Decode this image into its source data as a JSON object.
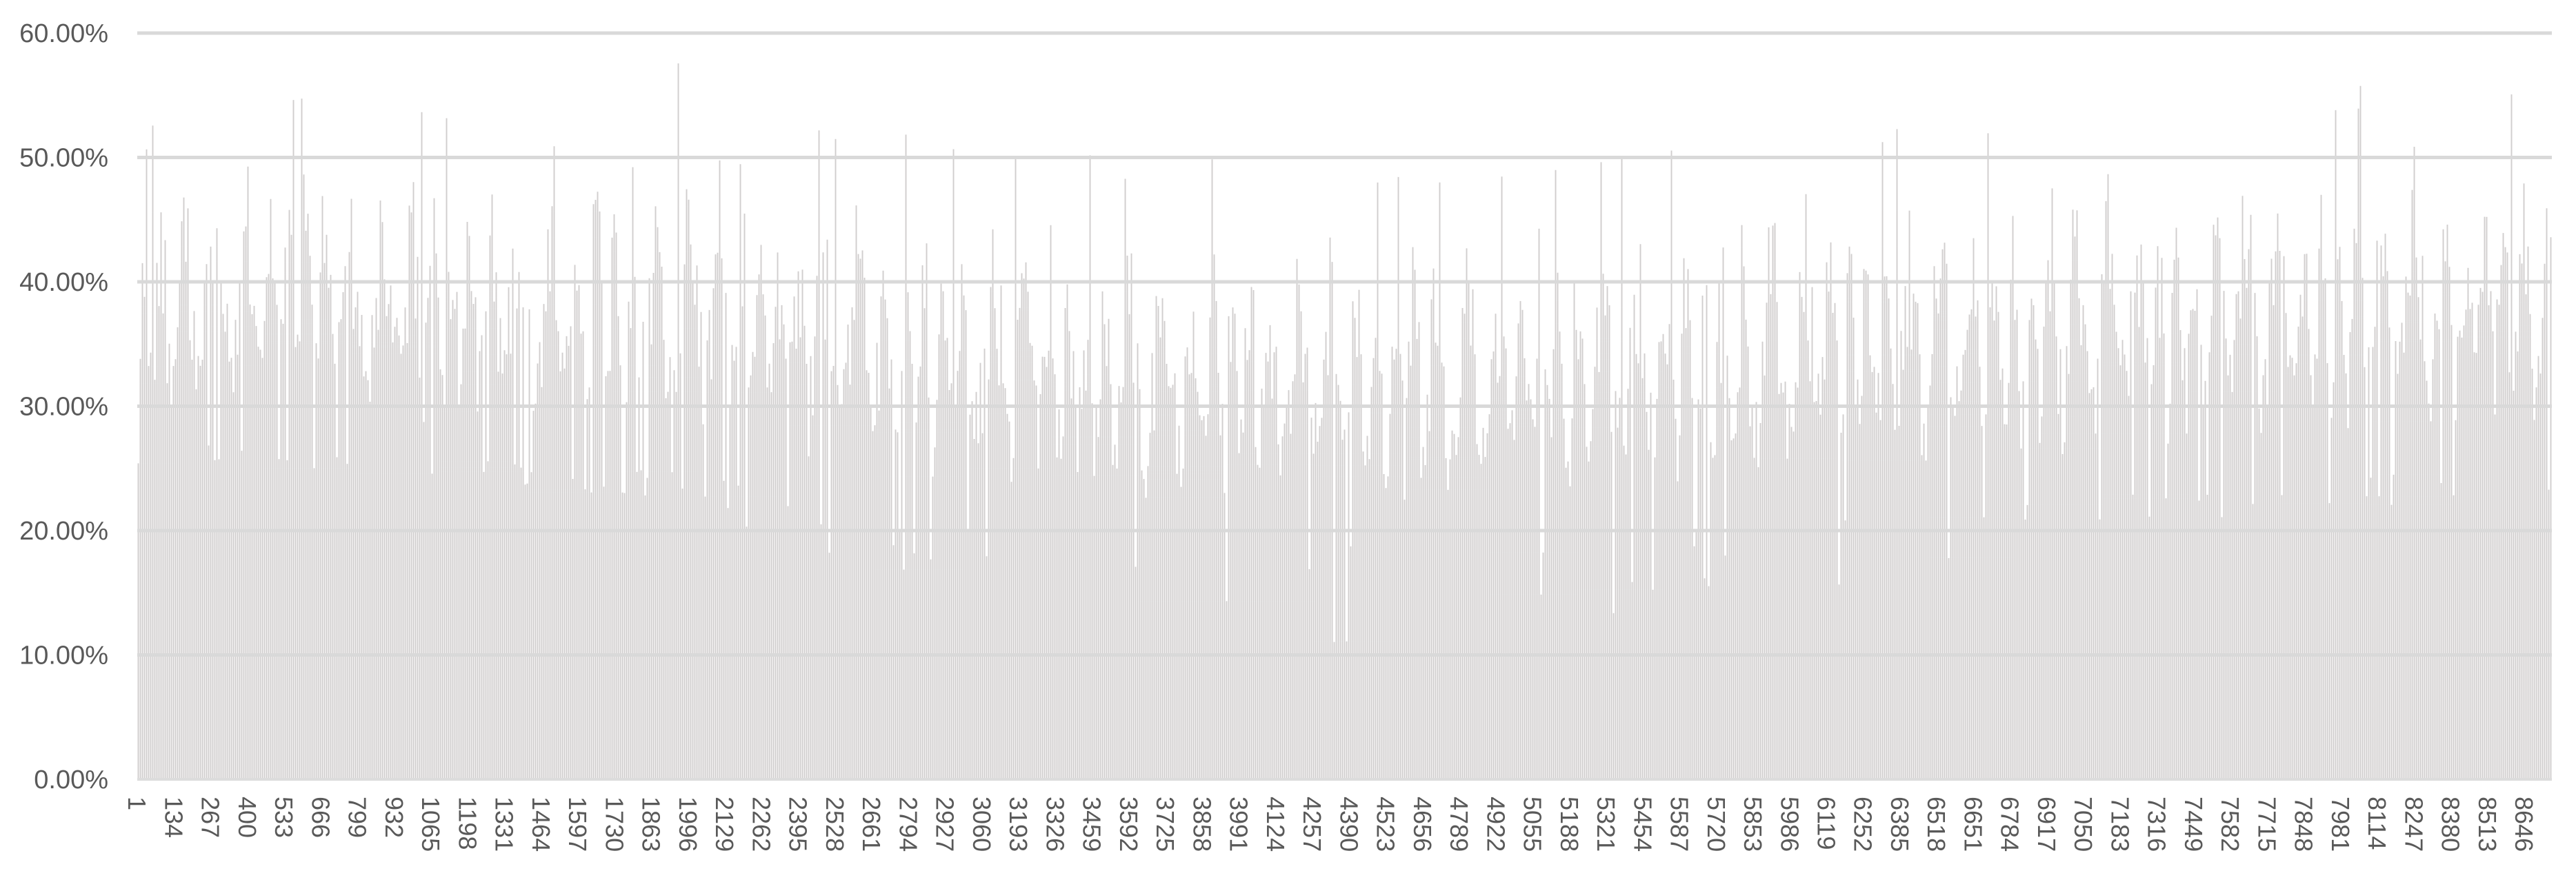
{
  "chart_data": {
    "type": "bar",
    "title": "",
    "legend": "none",
    "background": "#ffffff",
    "y_axis": {
      "tick_labels": [
        "60.00%",
        "50.00%",
        "40.00%",
        "30.00%",
        "20.00%",
        "10.00%",
        "0.00%"
      ],
      "min_pct": 0,
      "max_pct": 60,
      "tick_step_pct": 10,
      "gridlines": true,
      "label_color": "#595959"
    },
    "x_axis": {
      "tick_labels": [
        "1",
        "134",
        "267",
        "400",
        "533",
        "666",
        "799",
        "932",
        "1065",
        "1198",
        "1331",
        "1464",
        "1597",
        "1730",
        "1863",
        "1996",
        "2129",
        "2262",
        "2395",
        "2528",
        "2661",
        "2794",
        "2927",
        "3060",
        "3193",
        "3326",
        "3459",
        "3592",
        "3725",
        "3858",
        "3991",
        "4124",
        "4257",
        "4390",
        "4523",
        "4656",
        "4789",
        "4922",
        "5055",
        "5188",
        "5321",
        "5454",
        "5587",
        "5720",
        "5853",
        "5986",
        "6119",
        "6252",
        "6385",
        "6518",
        "6651",
        "6784",
        "6917",
        "7050",
        "7183",
        "7316",
        "7449",
        "7582",
        "7715",
        "7848",
        "7981",
        "8114",
        "8247",
        "8380",
        "8513",
        "8646"
      ],
      "tick_start": 1,
      "tick_step": 133,
      "last_tick": 8646,
      "categories_total_estimated": 8745,
      "label_rotation_deg": 90,
      "label_color": "#595959"
    },
    "series": [
      {
        "name": "",
        "unit": "percent",
        "observed_value_min_pct": 10.3,
        "observed_value_max_pct": 58.2,
        "typical_top_range_pct": [
          40,
          53
        ],
        "dense_mass_below_pct_left": 27,
        "dense_mass_below_pct_middle": 19,
        "dense_mass_below_pct_right": 25,
        "shape_note": "thousands of thin gray bars; tops mostly 30-53%, occasional spikes to ~58% near categories ~666, ~1996, ~7582; lower envelope dips to ~10% in the middle third"
      }
    ],
    "colors": {
      "bar": "#d0cece",
      "gridline": "#d9d9d9",
      "zero_gridline": "#dcdcdc",
      "axis_label": "#595959",
      "background": "#ffffff"
    },
    "render_approximation": {
      "note": "Individual bar values are not resolvable at screenshot resolution; bars are regenerated deterministically from this envelope (percent values).",
      "rendered_bars": 1167,
      "seed": 1234,
      "short_bar_probability": 0.08,
      "spike_probability": 0.016,
      "envelope_keyframes": [
        [
          0.0,
          24.0,
          26.0,
          46.0,
          52.0
        ],
        [
          0.02,
          25.0,
          27.0,
          50.0,
          55.0
        ],
        [
          0.06,
          25.0,
          27.0,
          52.0,
          58.0
        ],
        [
          0.1,
          24.0,
          26.0,
          51.0,
          55.0
        ],
        [
          0.16,
          23.0,
          26.0,
          52.0,
          56.0
        ],
        [
          0.22,
          22.0,
          25.0,
          53.0,
          58.0
        ],
        [
          0.27,
          19.0,
          23.0,
          51.0,
          55.0
        ],
        [
          0.32,
          14.0,
          21.0,
          48.0,
          52.0
        ],
        [
          0.38,
          12.0,
          20.0,
          47.0,
          51.0
        ],
        [
          0.44,
          10.5,
          19.0,
          47.0,
          50.0
        ],
        [
          0.5,
          10.5,
          19.0,
          46.0,
          49.0
        ],
        [
          0.56,
          11.0,
          19.0,
          47.0,
          50.0
        ],
        [
          0.62,
          12.0,
          20.0,
          47.0,
          51.0
        ],
        [
          0.68,
          14.0,
          21.0,
          48.0,
          52.0
        ],
        [
          0.74,
          17.0,
          22.0,
          50.0,
          53.0
        ],
        [
          0.8,
          19.0,
          23.0,
          51.0,
          55.0
        ],
        [
          0.87,
          21.0,
          24.0,
          52.0,
          58.0
        ],
        [
          0.93,
          22.0,
          25.0,
          52.0,
          56.0
        ],
        [
          1.0,
          23.0,
          25.0,
          53.0,
          57.0
        ]
      ]
    }
  }
}
